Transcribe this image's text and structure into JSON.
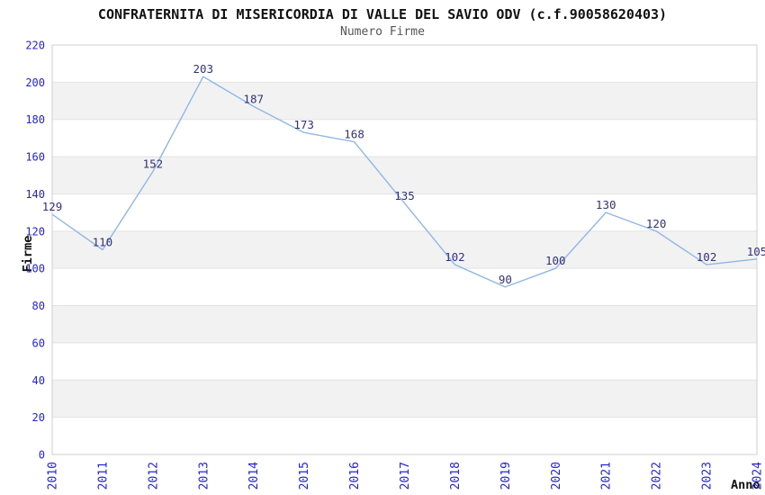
{
  "chart_data": {
    "type": "line",
    "title": "CONFRATERNITA DI MISERICORDIA DI VALLE DEL SAVIO ODV (c.f.90058620403)",
    "subtitle": "Numero Firme",
    "xlabel": "Anno",
    "ylabel": "Firme",
    "x": [
      "2010",
      "2011",
      "2012",
      "2013",
      "2014",
      "2015",
      "2016",
      "2017",
      "2018",
      "2019",
      "2020",
      "2021",
      "2022",
      "2023",
      "2024"
    ],
    "values": [
      129,
      110,
      152,
      203,
      187,
      173,
      168,
      135,
      102,
      90,
      100,
      130,
      120,
      102,
      105
    ],
    "ylim": [
      0,
      220
    ],
    "ytick_step": 20,
    "grid": "horizontal gridlines with alternating gray bands",
    "legend_position": "none",
    "point_labels_visible": true
  },
  "colors": {
    "background": "#ffffff",
    "line": "#8fb7e8",
    "tick_label": "#2323d7",
    "point_label": "#333377",
    "band": "#f2f2f2",
    "gridline": "#e2e2e2",
    "frame": "#cfcfcf",
    "title": "#111111",
    "subtitle": "#555555",
    "axis_title": "#111111"
  }
}
